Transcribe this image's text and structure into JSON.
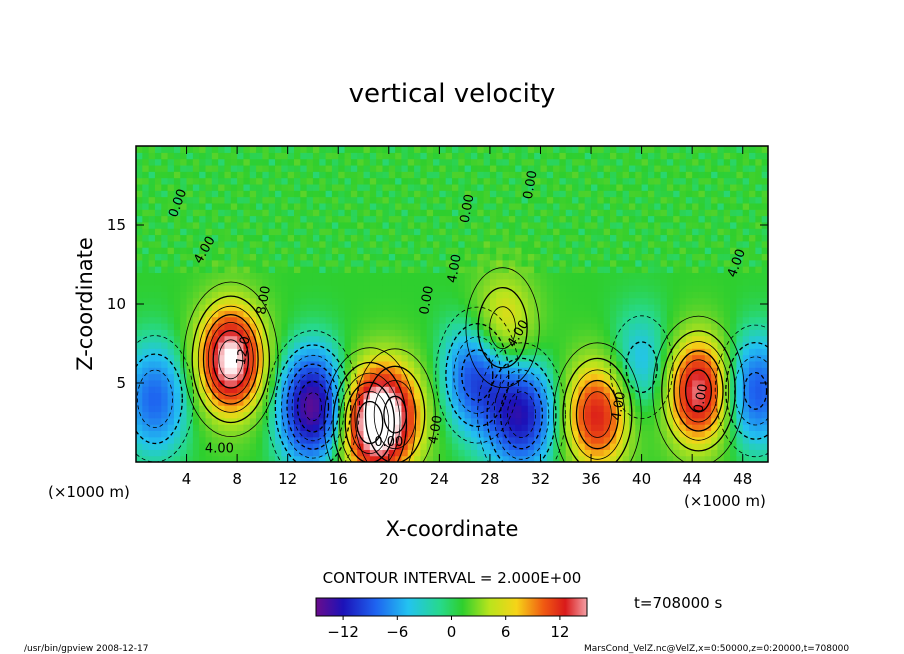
{
  "chart_data": {
    "type": "heatmap",
    "title": "vertical velocity",
    "xlabel": "X-coordinate",
    "ylabel": "Z-coordinate",
    "x_unit_left": "(×1000 m)",
    "x_unit_right": "(×1000 m)",
    "xlim": [
      0,
      50
    ],
    "ylim": [
      0,
      20
    ],
    "x_ticks": [
      "4",
      "8",
      "12",
      "16",
      "20",
      "24",
      "28",
      "32",
      "36",
      "40",
      "44",
      "48"
    ],
    "x_tick_values": [
      4,
      8,
      12,
      16,
      20,
      24,
      28,
      32,
      36,
      40,
      44,
      48
    ],
    "y_ticks": [
      "5",
      "10",
      "15"
    ],
    "y_tick_values": [
      5,
      10,
      15
    ],
    "contour_interval_text": "CONTOUR INTERVAL = 2.000E+00",
    "contour_labels": [
      "0.00",
      "4.00",
      "8.00",
      "12.0",
      "4.00",
      "0.00",
      "4.00",
      "0.00",
      "4.00",
      "0.00",
      "0.00",
      "4.00",
      "4.00",
      "0.00",
      "4.00"
    ],
    "colorbar": {
      "ticks": [
        "−12",
        "−6",
        "0",
        "6",
        "12"
      ],
      "tick_values": [
        -12,
        -6,
        0,
        6,
        12
      ],
      "range": [
        -15,
        15
      ]
    },
    "time_label": "t=708000 s",
    "updrafts": [
      {
        "x": 7.5,
        "z": 6.5,
        "peak": 16
      },
      {
        "x": 18.5,
        "z": 2.5,
        "peak": 14
      },
      {
        "x": 36.5,
        "z": 3.0,
        "peak": 12
      },
      {
        "x": 44.5,
        "z": 4.5,
        "peak": 14
      },
      {
        "x": 29.0,
        "z": 8.5,
        "peak": 7
      },
      {
        "x": 20.5,
        "z": 3.0,
        "peak": 9
      }
    ],
    "downdrafts": [
      {
        "x": 14.0,
        "z": 3.5,
        "peak": -15
      },
      {
        "x": 27.0,
        "z": 5.5,
        "peak": -10
      },
      {
        "x": 30.5,
        "z": 3.0,
        "peak": -12
      },
      {
        "x": 1.5,
        "z": 4.0,
        "peak": -8
      },
      {
        "x": 49.0,
        "z": 4.5,
        "peak": -9
      },
      {
        "x": 40.0,
        "z": 6.0,
        "peak": -5
      }
    ]
  },
  "footer": {
    "left": "/usr/bin/gpview   2008-12-17",
    "right": "MarsCond_VelZ.nc@VelZ,x=0:50000,z=0:20000,t=708000"
  },
  "colors": {
    "background": "#ffffff",
    "axis": "#000000",
    "zero": "#2ecf2e"
  }
}
